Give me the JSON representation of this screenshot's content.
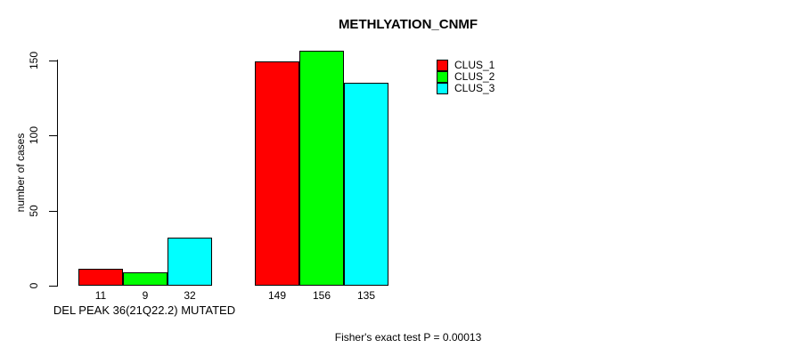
{
  "title": "METHLYATION_CNMF",
  "y_axis": {
    "label": "number of cases",
    "tick_labels": [
      "0",
      "50",
      "100",
      "150"
    ]
  },
  "x_axis": {
    "group_label": "DEL PEAK 36(21Q22.2) MUTATED"
  },
  "footer": "Fisher's exact test P = 0.00013",
  "legend": [
    {
      "label": "CLUS_1",
      "color": "#ff0000"
    },
    {
      "label": "CLUS_2",
      "color": "#00ff00"
    },
    {
      "label": "CLUS_3",
      "color": "#00ffff"
    }
  ],
  "chart_data": {
    "type": "bar",
    "title": "METHLYATION_CNMF",
    "xlabel": "DEL PEAK 36(21Q22.2) MUTATED",
    "ylabel": "number of cases",
    "categories": [
      "DEL PEAK 36(21Q22.2) MUTATED",
      ""
    ],
    "series": [
      {
        "name": "CLUS_1",
        "color": "#ff0000",
        "values": [
          11,
          149
        ]
      },
      {
        "name": "CLUS_2",
        "color": "#00ff00",
        "values": [
          9,
          156
        ]
      },
      {
        "name": "CLUS_3",
        "color": "#00ffff",
        "values": [
          32,
          135
        ]
      }
    ],
    "bar_value_labels": [
      [
        "11",
        "9",
        "32"
      ],
      [
        "149",
        "156",
        "135"
      ]
    ],
    "yticks": [
      0,
      50,
      100,
      150
    ],
    "ylim": [
      0,
      150
    ],
    "grid": false,
    "legend_position": "top-right",
    "annotation": "Fisher's exact test P = 0.00013"
  }
}
